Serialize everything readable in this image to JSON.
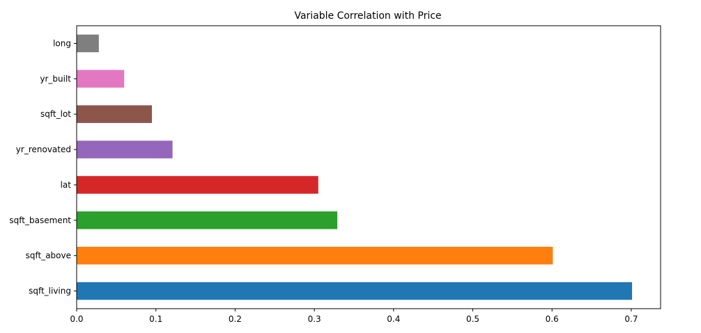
{
  "chart_data": {
    "type": "bar",
    "orientation": "horizontal",
    "title": "Variable Correlation with Price",
    "xlabel": "",
    "ylabel": "",
    "categories": [
      "sqft_living",
      "sqft_above",
      "sqft_basement",
      "lat",
      "yr_renovated",
      "sqft_lot",
      "yr_built",
      "long"
    ],
    "values": [
      0.701,
      0.601,
      0.329,
      0.305,
      0.121,
      0.095,
      0.06,
      0.028
    ],
    "colors": [
      "#1f77b4",
      "#ff7f0e",
      "#2ca02c",
      "#d62728",
      "#9467bd",
      "#8c564b",
      "#e377c2",
      "#7f7f7f"
    ],
    "xlim": [
      0.0,
      0.737
    ],
    "xticks": [
      0.0,
      0.1,
      0.2,
      0.3,
      0.4,
      0.5,
      0.6,
      0.7
    ],
    "xtick_labels": [
      "0.0",
      "0.1",
      "0.2",
      "0.3",
      "0.4",
      "0.5",
      "0.6",
      "0.7"
    ],
    "grid": false,
    "legend": "none"
  }
}
